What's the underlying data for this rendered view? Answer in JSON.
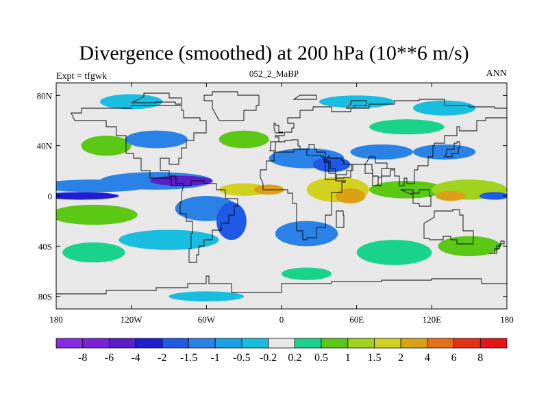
{
  "header": {
    "title": "Divergence (smoothed) at 200 hPa (10**6 m/s)",
    "left": "Expt = tfgwk",
    "center": "052_2_MaBP",
    "right": "ANN"
  },
  "map": {
    "lat_labels": [
      "80N",
      "40N",
      "0",
      "40S",
      "80S"
    ],
    "lat_values": [
      80,
      40,
      0,
      -40,
      -80
    ],
    "lon_labels": [
      "180",
      "120W",
      "60W",
      "0",
      "60E",
      "120E",
      "180"
    ],
    "lon_values": [
      -180,
      -120,
      -60,
      0,
      60,
      120,
      180
    ],
    "lat_range": [
      -90,
      90
    ],
    "lon_range": [
      -180,
      180
    ],
    "background_color": "#e8e8e8",
    "coastline_color": "#000000"
  },
  "colorbar": {
    "colors": [
      "#8a2be2",
      "#7a22d8",
      "#5a1ecc",
      "#1e1ed2",
      "#1e5ae6",
      "#2a82e6",
      "#1aa0e6",
      "#19bde0",
      "#e8e8e8",
      "#19d28c",
      "#5ac814",
      "#a0d21e",
      "#d2d21e",
      "#dca014",
      "#e66e14",
      "#e63214",
      "#e61414"
    ],
    "labels": [
      "-8",
      "-6",
      "-4",
      "-2",
      "-1.5",
      "-1",
      "-0.5",
      "-0.2",
      "0.2",
      "0.5",
      "1",
      "1.5",
      "2",
      "4",
      "6",
      "8"
    ]
  },
  "blobs": [
    {
      "lon": -150,
      "lat": 8,
      "rx": 45,
      "ry": 5,
      "level": -1
    },
    {
      "lon": -160,
      "lat": 0,
      "rx": 30,
      "ry": 3,
      "level": -3
    },
    {
      "lon": -100,
      "lat": 12,
      "rx": 45,
      "ry": 7,
      "level": -1
    },
    {
      "lon": -80,
      "lat": 12,
      "rx": 25,
      "ry": 4,
      "level": -4
    },
    {
      "lon": -150,
      "lat": -15,
      "rx": 35,
      "ry": 8,
      "level": 1
    },
    {
      "lon": -60,
      "lat": -10,
      "rx": 25,
      "ry": 10,
      "level": -1
    },
    {
      "lon": -40,
      "lat": -20,
      "rx": 12,
      "ry": 15,
      "level": -2
    },
    {
      "lon": -90,
      "lat": -35,
      "rx": 40,
      "ry": 8,
      "level": -0.5
    },
    {
      "lon": -30,
      "lat": 5,
      "rx": 20,
      "ry": 5,
      "level": 2
    },
    {
      "lon": -10,
      "lat": 5,
      "rx": 12,
      "ry": 4,
      "level": 3
    },
    {
      "lon": 45,
      "lat": 5,
      "rx": 25,
      "ry": 10,
      "level": 2
    },
    {
      "lon": 55,
      "lat": 0,
      "rx": 12,
      "ry": 6,
      "level": 3
    },
    {
      "lon": 100,
      "lat": 5,
      "rx": 30,
      "ry": 7,
      "level": 1
    },
    {
      "lon": 150,
      "lat": 5,
      "rx": 30,
      "ry": 8,
      "level": 1.5
    },
    {
      "lon": 135,
      "lat": 0,
      "rx": 12,
      "ry": 4,
      "level": 3
    },
    {
      "lon": 170,
      "lat": 0,
      "rx": 12,
      "ry": 3,
      "level": -2
    },
    {
      "lon": 20,
      "lat": 30,
      "rx": 30,
      "ry": 8,
      "level": -1
    },
    {
      "lon": 40,
      "lat": 25,
      "rx": 15,
      "ry": 6,
      "level": -2
    },
    {
      "lon": 80,
      "lat": 35,
      "rx": 25,
      "ry": 6,
      "level": -1
    },
    {
      "lon": 130,
      "lat": 35,
      "rx": 25,
      "ry": 6,
      "level": -1
    },
    {
      "lon": -140,
      "lat": 40,
      "rx": 20,
      "ry": 8,
      "level": 1
    },
    {
      "lon": -100,
      "lat": 45,
      "rx": 25,
      "ry": 7,
      "level": -1
    },
    {
      "lon": -30,
      "lat": 45,
      "rx": 20,
      "ry": 7,
      "level": 1
    },
    {
      "lon": 100,
      "lat": 55,
      "rx": 30,
      "ry": 6,
      "level": 0.5
    },
    {
      "lon": -120,
      "lat": 75,
      "rx": 25,
      "ry": 6,
      "level": -0.5
    },
    {
      "lon": 60,
      "lat": 75,
      "rx": 30,
      "ry": 5,
      "level": -0.5
    },
    {
      "lon": 130,
      "lat": 70,
      "rx": 25,
      "ry": 6,
      "level": -0.5
    },
    {
      "lon": 20,
      "lat": -30,
      "rx": 25,
      "ry": 10,
      "level": -1
    },
    {
      "lon": 90,
      "lat": -45,
      "rx": 30,
      "ry": 10,
      "level": 0.5
    },
    {
      "lon": 150,
      "lat": -40,
      "rx": 25,
      "ry": 8,
      "level": 1
    },
    {
      "lon": -150,
      "lat": -45,
      "rx": 25,
      "ry": 8,
      "level": 0.5
    },
    {
      "lon": -60,
      "lat": -80,
      "rx": 30,
      "ry": 4,
      "level": -0.5
    },
    {
      "lon": 20,
      "lat": -62,
      "rx": 20,
      "ry": 5,
      "level": 0.5
    }
  ]
}
